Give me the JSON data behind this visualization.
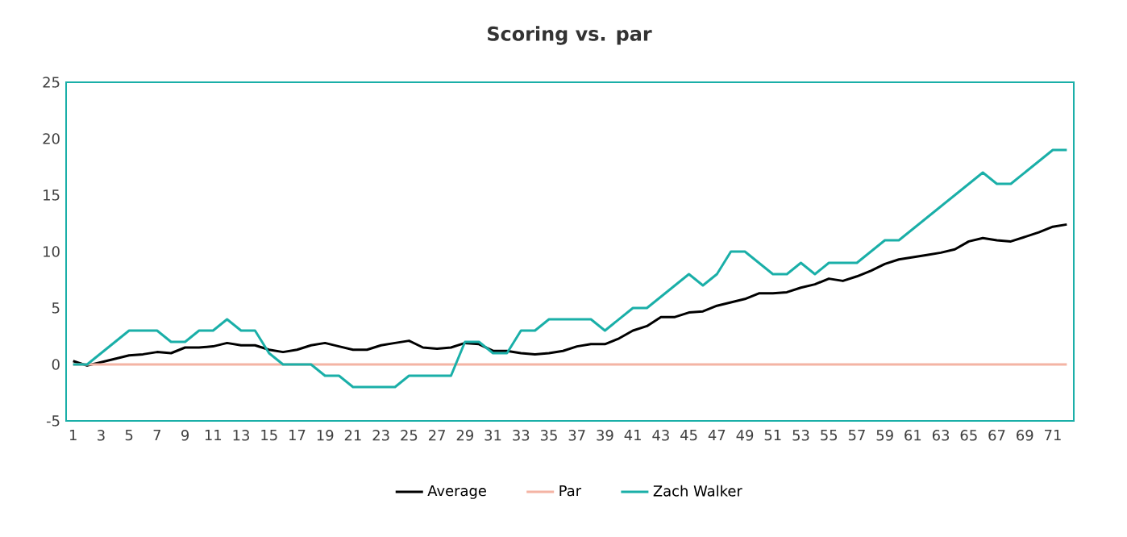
{
  "chart_data": {
    "type": "line",
    "title": "Scoring vs. par",
    "categories": [
      "1",
      null,
      "3",
      null,
      "5",
      null,
      "7",
      null,
      "9",
      null,
      "11",
      null,
      "13",
      null,
      "15",
      null,
      "17",
      null,
      "19",
      null,
      "21",
      null,
      "23",
      null,
      "25",
      null,
      "27",
      null,
      "29",
      null,
      "31",
      null,
      "33",
      null,
      "35",
      null,
      "37",
      null,
      "39",
      null,
      "41",
      null,
      "43",
      null,
      "45",
      null,
      "47",
      null,
      "49",
      null,
      "51",
      null,
      "53",
      null,
      "55",
      null,
      "57",
      null,
      "59",
      null,
      "61",
      null,
      "63",
      null,
      "65",
      null,
      "67",
      null,
      "69",
      null,
      "71",
      null
    ],
    "series": [
      {
        "name": "Average",
        "color": "#000000",
        "values": [
          0.3,
          -0.1,
          0.2,
          0.5,
          0.8,
          0.9,
          1.1,
          1.0,
          1.5,
          1.5,
          1.6,
          1.9,
          1.7,
          1.7,
          1.3,
          1.1,
          1.3,
          1.7,
          1.9,
          1.6,
          1.3,
          1.3,
          1.7,
          1.9,
          2.1,
          1.5,
          1.4,
          1.5,
          1.9,
          1.8,
          1.2,
          1.2,
          1.0,
          0.9,
          1.0,
          1.2,
          1.6,
          1.8,
          1.8,
          2.3,
          3.0,
          3.4,
          4.2,
          4.2,
          4.6,
          4.7,
          5.2,
          5.5,
          5.8,
          6.3,
          6.3,
          6.4,
          6.8,
          7.1,
          7.6,
          7.4,
          7.8,
          8.3,
          8.9,
          9.3,
          9.5,
          9.7,
          9.9,
          10.2,
          10.9,
          11.2,
          11.0,
          10.9,
          11.3,
          11.7,
          12.2,
          12.4
        ]
      },
      {
        "name": "Par",
        "color": "#f4b4a4",
        "values": [
          0,
          0,
          0,
          0,
          0,
          0,
          0,
          0,
          0,
          0,
          0,
          0,
          0,
          0,
          0,
          0,
          0,
          0,
          0,
          0,
          0,
          0,
          0,
          0,
          0,
          0,
          0,
          0,
          0,
          0,
          0,
          0,
          0,
          0,
          0,
          0,
          0,
          0,
          0,
          0,
          0,
          0,
          0,
          0,
          0,
          0,
          0,
          0,
          0,
          0,
          0,
          0,
          0,
          0,
          0,
          0,
          0,
          0,
          0,
          0,
          0,
          0,
          0,
          0,
          0,
          0,
          0,
          0,
          0,
          0,
          0,
          0
        ]
      },
      {
        "name": "Zach Walker",
        "color": "#1aafa8",
        "values": [
          0,
          0,
          1,
          2,
          3,
          3,
          3,
          2,
          2,
          3,
          3,
          4,
          3,
          3,
          1,
          0,
          0,
          0,
          -1,
          -1,
          -2,
          -2,
          -2,
          -2,
          -1,
          -1,
          -1,
          -1,
          2,
          2,
          1,
          1,
          3,
          3,
          4,
          4,
          4,
          4,
          3,
          4,
          5,
          5,
          6,
          7,
          8,
          7,
          8,
          10,
          10,
          9,
          8,
          8,
          9,
          8,
          9,
          9,
          9,
          10,
          11,
          11,
          12,
          13,
          14,
          15,
          16,
          17,
          16,
          16,
          17,
          18,
          19,
          19
        ]
      }
    ],
    "ylim": [
      -5,
      25
    ],
    "yticks": [
      -5,
      0,
      5,
      10,
      15,
      20,
      25
    ],
    "grid": false,
    "legend": "bottom",
    "line_style": "solid"
  }
}
